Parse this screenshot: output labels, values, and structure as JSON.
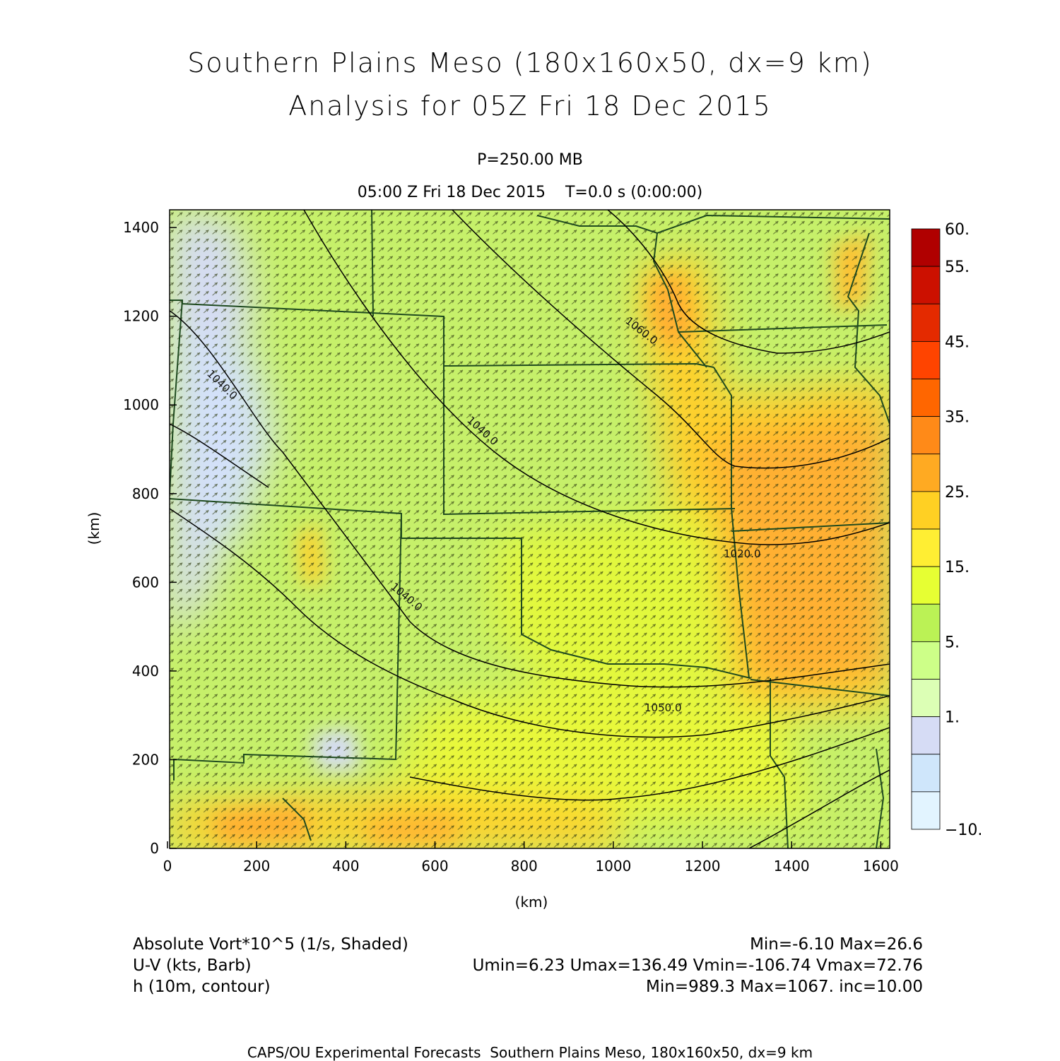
{
  "title": {
    "line1": "Southern Plains Meso (180x160x50, dx=9 km)",
    "line2": "Analysis for 05Z Fri 18 Dec 2015"
  },
  "subtitle": {
    "level": "P=250.00 MB",
    "time": "05:00 Z Fri 18 Dec 2015    T=0.0 s (0:00:00)"
  },
  "axes": {
    "xlabel": "(km)",
    "ylabel": "(km)",
    "xlim": [
      0,
      1620
    ],
    "ylim": [
      0,
      1440
    ],
    "xticks": [
      "0",
      "200",
      "400",
      "600",
      "800",
      "1000",
      "1200",
      "1400",
      "1600"
    ],
    "yticks": [
      "0",
      "200",
      "400",
      "600",
      "800",
      "1000",
      "1200",
      "1400"
    ]
  },
  "colorbar": {
    "labels": [
      "60.",
      "55.",
      "45.",
      "35.",
      "25.",
      "15.",
      "5.",
      "1.",
      "-10."
    ],
    "colors": [
      "#b00000",
      "#cc1000",
      "#e42a00",
      "#ff4400",
      "#ff6600",
      "#ff8a18",
      "#ffaa22",
      "#ffd023",
      "#ffee33",
      "#e6ff33",
      "#bbf255",
      "#cdff88",
      "#dcffb5",
      "#d6dcf5",
      "#cfe6fb",
      "#e2f4ff"
    ]
  },
  "contours": {
    "labels": [
      "1060.0",
      "1040.0",
      "1020.0",
      "1040.0",
      "1050.0"
    ]
  },
  "footer": {
    "line1_left": "Absolute Vort*10^5 (1/s, Shaded)",
    "line1_right": "Min=-6.10 Max=26.6",
    "line2_left": "U-V (kts, Barb)",
    "line2_right": "Umin=6.23 Umax=136.49 Vmin=-106.74 Vmax=72.76",
    "line3_left": "h (10m, contour)",
    "line3_right": "Min=989.3 Max=1067. inc=10.00"
  },
  "credit": "CAPS/OU Experimental Forecasts  Southern Plains Meso, 180x160x50, dx=9 km"
}
